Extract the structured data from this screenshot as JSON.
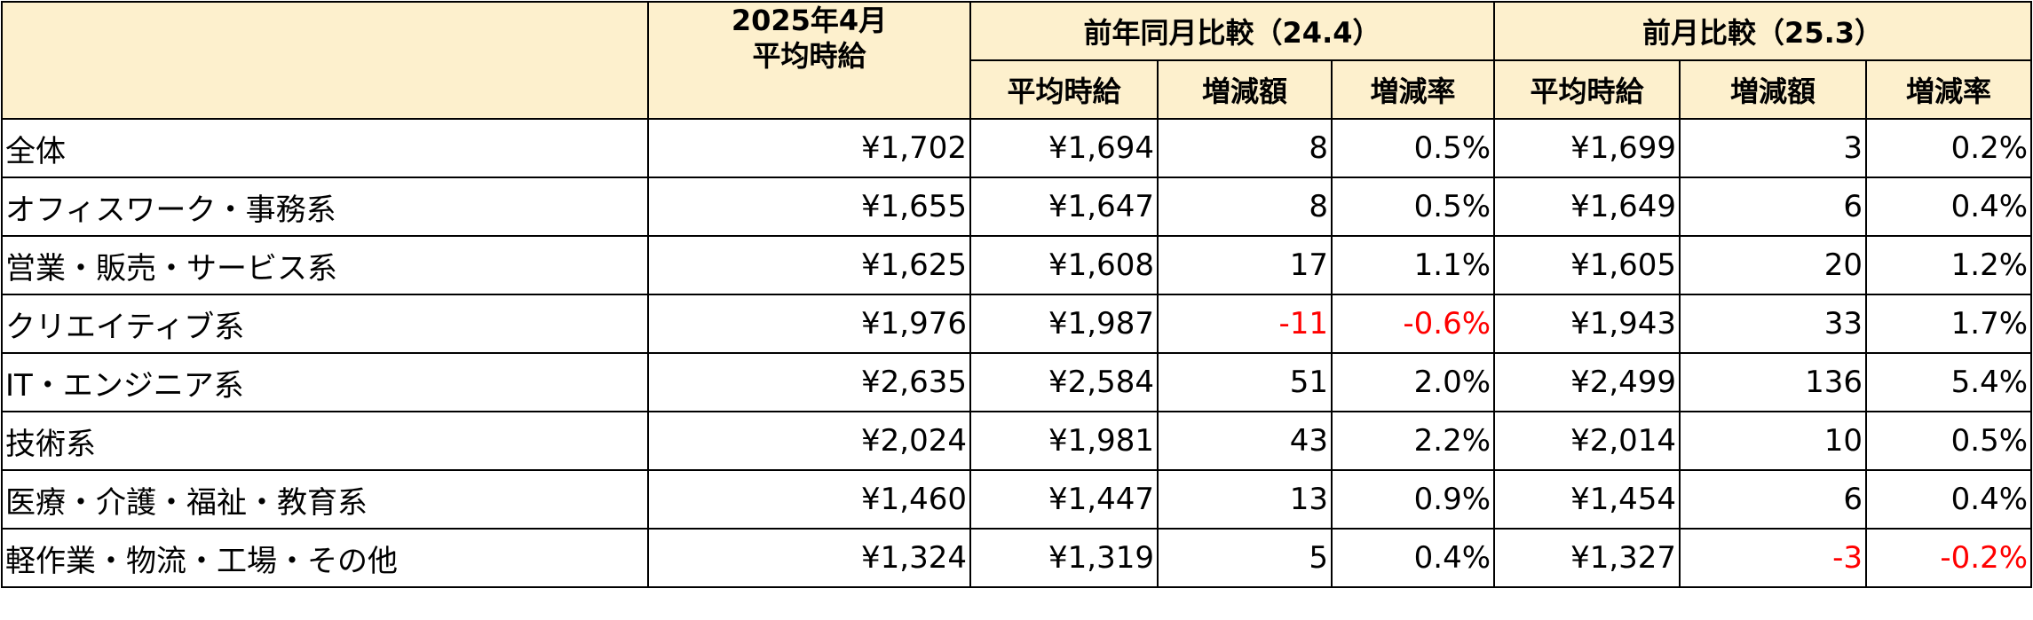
{
  "header": {
    "month_line1": "2025年4月",
    "month_line2": "平均時給",
    "yoy_title": "前年同月比較（24.4）",
    "mom_title": "前月比較（25.3）",
    "sub_avg": "平均時給",
    "sub_diff": "増減額",
    "sub_rate": "増減率"
  },
  "rows": [
    {
      "category": "全体",
      "current": "¥1,702",
      "yoy_avg": "¥1,694",
      "yoy_diff": "8",
      "yoy_rate": "0.5%",
      "mom_avg": "¥1,699",
      "mom_diff": "3",
      "mom_rate": "0.2%"
    },
    {
      "category": "オフィスワーク・事務系",
      "current": "¥1,655",
      "yoy_avg": "¥1,647",
      "yoy_diff": "8",
      "yoy_rate": "0.5%",
      "mom_avg": "¥1,649",
      "mom_diff": "6",
      "mom_rate": "0.4%"
    },
    {
      "category": "営業・販売・サービス系",
      "current": "¥1,625",
      "yoy_avg": "¥1,608",
      "yoy_diff": "17",
      "yoy_rate": "1.1%",
      "mom_avg": "¥1,605",
      "mom_diff": "20",
      "mom_rate": "1.2%"
    },
    {
      "category": "クリエイティブ系",
      "current": "¥1,976",
      "yoy_avg": "¥1,987",
      "yoy_diff": "-11",
      "yoy_rate": "-0.6%",
      "mom_avg": "¥1,943",
      "mom_diff": "33",
      "mom_rate": "1.7%"
    },
    {
      "category": "IT・エンジニア系",
      "current": "¥2,635",
      "yoy_avg": "¥2,584",
      "yoy_diff": "51",
      "yoy_rate": "2.0%",
      "mom_avg": "¥2,499",
      "mom_diff": "136",
      "mom_rate": "5.4%"
    },
    {
      "category": "技術系",
      "current": "¥2,024",
      "yoy_avg": "¥1,981",
      "yoy_diff": "43",
      "yoy_rate": "2.2%",
      "mom_avg": "¥2,014",
      "mom_diff": "10",
      "mom_rate": "0.5%"
    },
    {
      "category": "医療・介護・福祉・教育系",
      "current": "¥1,460",
      "yoy_avg": "¥1,447",
      "yoy_diff": "13",
      "yoy_rate": "0.9%",
      "mom_avg": "¥1,454",
      "mom_diff": "6",
      "mom_rate": "0.4%"
    },
    {
      "category": "軽作業・物流・工場・その他",
      "current": "¥1,324",
      "yoy_avg": "¥1,319",
      "yoy_diff": "5",
      "yoy_rate": "0.4%",
      "mom_avg": "¥1,327",
      "mom_diff": "-3",
      "mom_rate": "-0.2%"
    }
  ],
  "colors": {
    "header_bg": "#fdf0cd",
    "negative": "#ff0000",
    "border": "#000000"
  }
}
